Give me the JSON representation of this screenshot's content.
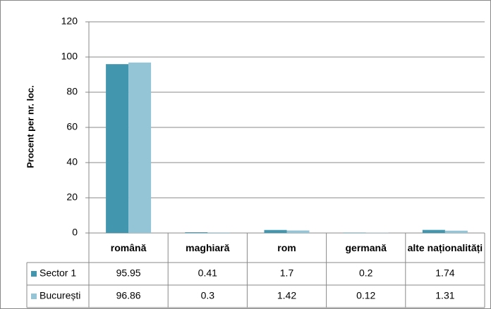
{
  "chart_data": {
    "type": "bar",
    "y_label": "Procent per nr. loc.",
    "categories": [
      "română",
      "maghiară",
      "rom",
      "germană",
      "alte naționalități"
    ],
    "series": [
      {
        "name": "Sector 1",
        "color": "#4297ae",
        "values": [
          95.95,
          0.41,
          1.7,
          0.2,
          1.74
        ]
      },
      {
        "name": "București",
        "color": "#93c5d6",
        "values": [
          96.86,
          0.3,
          1.42,
          0.12,
          1.31
        ]
      }
    ],
    "ylim": [
      0,
      120
    ],
    "yticks": [
      0,
      20,
      40,
      60,
      80,
      100,
      120
    ],
    "grid": true
  }
}
